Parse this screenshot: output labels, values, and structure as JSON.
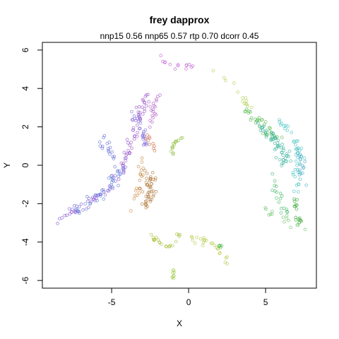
{
  "chart_data": {
    "type": "scatter",
    "title": "frey dapprox",
    "subtitle": "nnp15 0.56 nnp65 0.57 rtp 0.70 dcorr 0.45",
    "xlabel": "X",
    "ylabel": "Y",
    "xlim": [
      -9.5,
      8.3
    ],
    "ylim": [
      -6.4,
      6.4
    ],
    "xticks": [
      -5,
      0,
      5
    ],
    "yticks": [
      -6,
      -4,
      -2,
      0,
      2,
      4,
      6
    ],
    "grid": false,
    "legend": "none",
    "marker": "open-circle",
    "clusters": [
      {
        "color": "#8a5cd6",
        "path": [
          [
            -9.0,
            -3.0
          ],
          [
            -8.0,
            -2.6
          ],
          [
            -7.0,
            -2.2
          ],
          [
            -6.0,
            -1.7
          ],
          [
            -5.0,
            -1.0
          ],
          [
            -4.5,
            -0.3
          ],
          [
            -4.0,
            0.3
          ]
        ],
        "n": 55,
        "spread": 0.25
      },
      {
        "color": "#5a7fd9",
        "path": [
          [
            -7.5,
            -2.4
          ],
          [
            -6.5,
            -1.9
          ],
          [
            -5.5,
            -1.4
          ],
          [
            -4.8,
            -0.8
          ],
          [
            -4.2,
            -0.2
          ]
        ],
        "n": 35,
        "spread": 0.3
      },
      {
        "color": "#9b59c9",
        "path": [
          [
            -4.3,
            0.0
          ],
          [
            -4.0,
            0.8
          ],
          [
            -3.6,
            1.5
          ],
          [
            -3.3,
            2.3
          ],
          [
            -3.0,
            3.0
          ],
          [
            -2.6,
            3.5
          ]
        ],
        "n": 50,
        "spread": 0.3
      },
      {
        "color": "#6a72d4",
        "path": [
          [
            -5.6,
            1.3
          ],
          [
            -5.0,
            0.6
          ],
          [
            -4.6,
            0.1
          ]
        ],
        "n": 18,
        "spread": 0.2
      },
      {
        "color": "#7f6ad8",
        "path": [
          [
            -3.6,
            2.7
          ],
          [
            -3.2,
            2.2
          ],
          [
            -2.9,
            1.6
          ],
          [
            -2.9,
            1.0
          ]
        ],
        "n": 25,
        "spread": 0.2
      },
      {
        "color": "#b060c8",
        "path": [
          [
            -2.5,
            2.0
          ],
          [
            -2.3,
            2.6
          ],
          [
            -2.1,
            3.3
          ],
          [
            -1.8,
            3.6
          ]
        ],
        "n": 18,
        "spread": 0.18
      },
      {
        "color": "#c060d0",
        "path": [
          [
            -1.9,
            5.6
          ],
          [
            -1.5,
            5.3
          ],
          [
            -1.0,
            5.0
          ],
          [
            -0.5,
            5.2
          ],
          [
            0.3,
            5.2
          ]
        ],
        "n": 14,
        "spread": 0.15
      },
      {
        "color": "#b07a3e",
        "path": [
          [
            -2.6,
            -0.4
          ],
          [
            -2.4,
            -1.0
          ],
          [
            -2.6,
            -1.7
          ],
          [
            -2.8,
            -2.2
          ]
        ],
        "n": 45,
        "spread": 0.22
      },
      {
        "color": "#c98a45",
        "path": [
          [
            -3.6,
            -2.5
          ],
          [
            -3.4,
            -1.4
          ],
          [
            -3.1,
            -0.6
          ],
          [
            -3.0,
            0.3
          ]
        ],
        "n": 20,
        "spread": 0.2
      },
      {
        "color": "#cc6f4e",
        "path": [
          [
            -2.8,
            1.8
          ],
          [
            -2.5,
            1.3
          ],
          [
            -2.2,
            0.9
          ]
        ],
        "n": 10,
        "spread": 0.15
      },
      {
        "color": "#8fbf3a",
        "path": [
          [
            -1.1,
            0.6
          ],
          [
            -1.0,
            1.0
          ],
          [
            -0.8,
            1.3
          ],
          [
            -0.4,
            1.5
          ]
        ],
        "n": 14,
        "spread": 0.12
      },
      {
        "color": "#a7c23c",
        "path": [
          [
            -2.5,
            -3.6
          ],
          [
            -2.0,
            -4.0
          ],
          [
            -1.4,
            -4.4
          ],
          [
            -0.8,
            -4.0
          ],
          [
            -0.6,
            -3.6
          ]
        ],
        "n": 22,
        "spread": 0.14
      },
      {
        "color": "#9ec93e",
        "path": [
          [
            -1.0,
            -5.4
          ],
          [
            -1.1,
            -5.8
          ]
        ],
        "n": 8,
        "spread": 0.12
      },
      {
        "color": "#b5c846",
        "path": [
          [
            0.1,
            -3.8
          ],
          [
            0.8,
            -3.9
          ],
          [
            1.5,
            -4.0
          ],
          [
            2.0,
            -4.4
          ],
          [
            2.3,
            -4.9
          ],
          [
            2.5,
            -5.2
          ]
        ],
        "n": 24,
        "spread": 0.15
      },
      {
        "color": "#4fb84a",
        "path": [
          [
            2.0,
            -4.1
          ],
          [
            2.1,
            -4.3
          ]
        ],
        "n": 5,
        "spread": 0.1
      },
      {
        "color": "#b4cf55",
        "path": [
          [
            1.6,
            4.9
          ],
          [
            2.6,
            4.5
          ],
          [
            3.3,
            3.9
          ],
          [
            3.8,
            3.2
          ],
          [
            4.3,
            2.6
          ]
        ],
        "n": 14,
        "spread": 0.18
      },
      {
        "color": "#55b84f",
        "path": [
          [
            3.6,
            2.8
          ],
          [
            4.4,
            2.4
          ],
          [
            5.0,
            1.9
          ],
          [
            5.8,
            1.4
          ]
        ],
        "n": 35,
        "spread": 0.25
      },
      {
        "color": "#3fb5a0",
        "path": [
          [
            4.8,
            2.0
          ],
          [
            5.4,
            1.4
          ],
          [
            5.9,
            0.8
          ],
          [
            6.3,
            0.2
          ]
        ],
        "n": 55,
        "spread": 0.3
      },
      {
        "color": "#46c2c2",
        "path": [
          [
            5.8,
            2.3
          ],
          [
            6.5,
            1.9
          ],
          [
            7.0,
            1.3
          ],
          [
            7.1,
            0.3
          ],
          [
            7.0,
            -0.5
          ],
          [
            7.0,
            -1.2
          ]
        ],
        "n": 45,
        "spread": 0.28
      },
      {
        "color": "#48b96a",
        "path": [
          [
            5.4,
            -0.3
          ],
          [
            5.6,
            -1.1
          ],
          [
            6.0,
            -1.8
          ],
          [
            6.4,
            -2.5
          ]
        ],
        "n": 18,
        "spread": 0.22
      },
      {
        "color": "#3da83a",
        "path": [
          [
            6.9,
            -1.8
          ],
          [
            7.0,
            -2.3
          ],
          [
            7.1,
            -2.8
          ],
          [
            7.3,
            -3.0
          ]
        ],
        "n": 16,
        "spread": 0.15
      },
      {
        "color": "#6dc36b",
        "path": [
          [
            4.8,
            -2.3
          ],
          [
            5.6,
            -2.6
          ],
          [
            6.5,
            -2.9
          ],
          [
            7.4,
            -3.1
          ]
        ],
        "n": 16,
        "spread": 0.22
      },
      {
        "color": "#4aa9c9",
        "path": [
          [
            7.2,
            0.6
          ],
          [
            7.4,
            -0.1
          ],
          [
            7.5,
            -0.8
          ]
        ],
        "n": 14,
        "spread": 0.18
      }
    ]
  }
}
